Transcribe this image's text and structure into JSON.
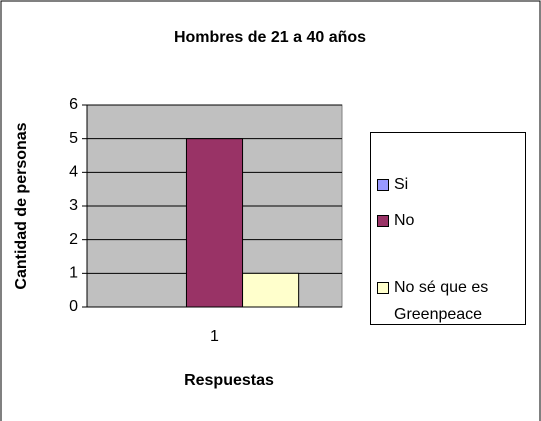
{
  "chart_data": {
    "type": "bar",
    "title": "Hombres de 21 a 40 años",
    "x_label": "Respuestas",
    "y_label": "Cantidad de personas",
    "categories": [
      "1"
    ],
    "series": [
      {
        "name": "Si",
        "color": "#9999ff",
        "values": [
          0
        ]
      },
      {
        "name": "No",
        "color": "#993366",
        "values": [
          5
        ]
      },
      {
        "name": "No sé que es Greenpeace",
        "color": "#ffffcc",
        "values": [
          1
        ]
      }
    ],
    "ylim": [
      0,
      6
    ],
    "yticks": [
      0,
      1,
      2,
      3,
      4,
      5,
      6
    ],
    "grid": true,
    "plot_background": "#c0c0c0",
    "legend": "right"
  }
}
